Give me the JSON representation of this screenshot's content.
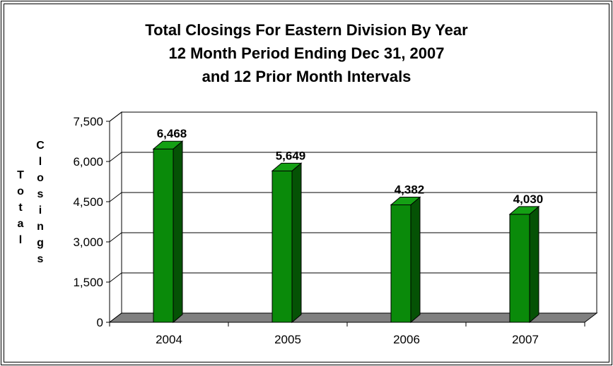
{
  "chart_data": {
    "type": "bar",
    "title_lines": [
      "Total Closings For Eastern Division By Year",
      "12 Month Period Ending Dec 31, 2007",
      "and 12 Prior Month Intervals"
    ],
    "ylabel_words": [
      "Total",
      "Closings"
    ],
    "categories": [
      "2004",
      "2005",
      "2006",
      "2007"
    ],
    "values": [
      6468,
      5649,
      4382,
      4030
    ],
    "data_labels": [
      "6,468",
      "5,649",
      "4,382",
      "4,030"
    ],
    "ylim": [
      0,
      7500
    ],
    "yticks": [
      0,
      1500,
      3000,
      4500,
      6000,
      7500
    ],
    "ytick_labels": [
      "0",
      "1,500",
      "3,000",
      "4,500",
      "6,000",
      "7,500"
    ],
    "grid": true,
    "bar_color": "#0a8a0a",
    "bar_side_color": "#055205",
    "bar_top_color": "#14a014",
    "floor_color": "#808080"
  }
}
